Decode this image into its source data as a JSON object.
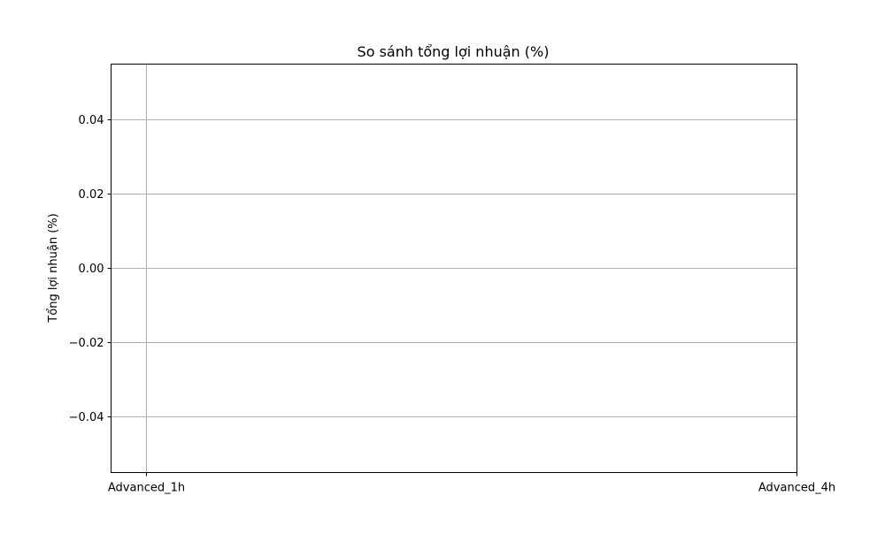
{
  "chart_data": {
    "type": "bar",
    "title": "So sánh tổng lợi nhuận (%)",
    "xlabel": "",
    "ylabel": "Tổng lợi nhuận (%)",
    "categories": [
      "Advanced_1h",
      "Advanced_4h"
    ],
    "values": [
      0,
      0
    ],
    "ylim": [
      -0.055,
      0.055
    ],
    "yticks": [
      -0.04,
      -0.02,
      0.0,
      0.02,
      0.04
    ],
    "ytick_labels": [
      "−0.04",
      "−0.02",
      "0.00",
      "0.02",
      "0.04"
    ],
    "grid": true,
    "colors": {
      "grid": "#b0b0b0",
      "axis": "#000000"
    }
  }
}
